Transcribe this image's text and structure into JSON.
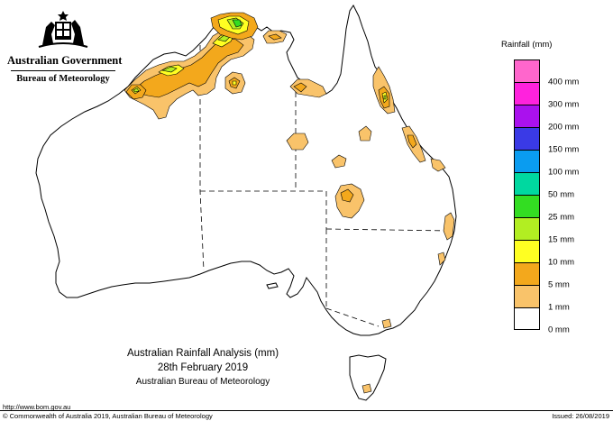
{
  "header": {
    "government": "Australian Government",
    "bureau": "Bureau of Meteorology"
  },
  "legend": {
    "title": "Rainfall (mm)",
    "items": [
      {
        "label": "",
        "color": "#ff66cc"
      },
      {
        "label": "400 mm",
        "color": "#ff22dd"
      },
      {
        "label": "300 mm",
        "color": "#aa11ee"
      },
      {
        "label": "200 mm",
        "color": "#3a3ae6"
      },
      {
        "label": "150 mm",
        "color": "#0a9cf0"
      },
      {
        "label": "100 mm",
        "color": "#00d8a0"
      },
      {
        "label": "50 mm",
        "color": "#33dd22"
      },
      {
        "label": "25 mm",
        "color": "#b2ee22"
      },
      {
        "label": "15 mm",
        "color": "#ffff22"
      },
      {
        "label": "10 mm",
        "color": "#f3a81c"
      },
      {
        "label": "5 mm",
        "color": "#f9c36a"
      },
      {
        "label": "1 mm",
        "color": "#ffffff"
      },
      {
        "label": "0 mm",
        "color": ""
      }
    ]
  },
  "titles": {
    "line1": "Australian Rainfall Analysis (mm)",
    "line2": "28th February 2019",
    "line3": "Australian Bureau of Meteorology"
  },
  "footer": {
    "url": "http://www.bom.gov.au",
    "copyright": "© Commonwealth of Australia 2019, Australian Bureau of Meteorology",
    "issued": "Issued: 26/08/2019"
  },
  "map": {
    "colors": {
      "c1": "#f9c36a",
      "c5": "#f3a81c",
      "c10": "#ffff22",
      "c15": "#b2ee22",
      "c25": "#33dd22"
    }
  }
}
